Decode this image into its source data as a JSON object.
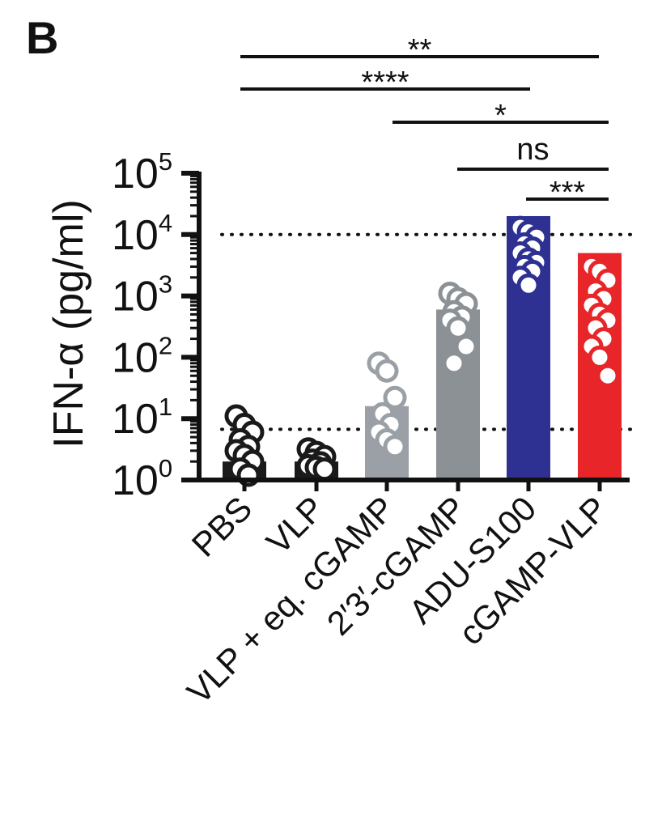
{
  "panel_label": "B",
  "chart_data": {
    "type": "bar",
    "title": "",
    "ylabel": "IFN-α (pg/ml)",
    "yscale": "log",
    "ylim": [
      1,
      100000
    ],
    "yticks": [
      {
        "value": 1,
        "base": "10",
        "exp": "0"
      },
      {
        "value": 10,
        "base": "10",
        "exp": "1"
      },
      {
        "value": 100,
        "base": "10",
        "exp": "2"
      },
      {
        "value": 1000,
        "base": "10",
        "exp": "3"
      },
      {
        "value": 10000,
        "base": "10",
        "exp": "4"
      },
      {
        "value": 100000,
        "base": "10",
        "exp": "5"
      }
    ],
    "categories": [
      "PBS",
      "VLP",
      "VLP + eq. cGAMP",
      "2′3′-cGAMP",
      "ADU-S100",
      "cGAMP-VLP"
    ],
    "values": [
      2,
      2,
      16,
      600,
      20000,
      5000
    ],
    "colors": [
      "#1a1a1a",
      "#1a1a1a",
      "#9aa0a6",
      "#8c9196",
      "#2e3192",
      "#e8262a"
    ],
    "points": [
      [
        11,
        8,
        6,
        4.5,
        3.5,
        3,
        2.5,
        2,
        1.5,
        1.2
      ],
      [
        3.2,
        2.8,
        2.4,
        2.1,
        1.9,
        1.7,
        1.6,
        1.5
      ],
      [
        80,
        60,
        22,
        12,
        8,
        6,
        4.5,
        3.5
      ],
      [
        1100,
        900,
        750,
        550,
        450,
        400,
        300,
        150,
        80
      ],
      [
        13000,
        11000,
        9000,
        7000,
        6000,
        5000,
        4000,
        3500,
        3000,
        2500,
        2000,
        1500
      ],
      [
        3000,
        2500,
        1800,
        1200,
        900,
        700,
        500,
        400,
        300,
        200,
        150,
        100,
        50
      ]
    ],
    "reference_lines": [
      10000,
      6.7
    ],
    "significance": [
      {
        "from": 0,
        "to": 5,
        "label": "**"
      },
      {
        "from": 0,
        "to": 4,
        "label": "****"
      },
      {
        "from": 2,
        "to": 5,
        "label": "*"
      },
      {
        "from": 3,
        "to": 5,
        "label": "ns"
      },
      {
        "from": 4,
        "to": 5,
        "label": "***"
      }
    ]
  }
}
